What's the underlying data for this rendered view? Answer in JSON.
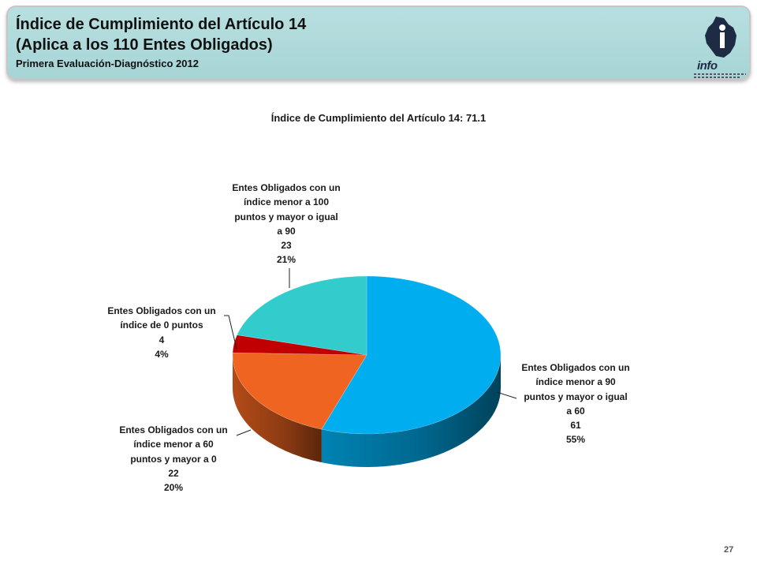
{
  "header": {
    "title_line1": "Índice de Cumplimiento del Artículo 14",
    "title_line2": "(Aplica a los 110 Entes Obligados)",
    "subtitle": "Primera Evaluación-Diagnóstico 2012",
    "logo_text": "info",
    "logo_icon": "infodf-logo-icon"
  },
  "page_number": "27",
  "chart_data": {
    "type": "pie",
    "title": "Índice de Cumplimiento del Artículo 14: 71.1",
    "total": 110,
    "slices": [
      {
        "label_lines": [
          "Entes Obligados con un",
          "índice menor a 90",
          "puntos y mayor o igual",
          "a 60"
        ],
        "value": 61,
        "value_text": "61",
        "percent_text": "55%",
        "color": "#00aeef"
      },
      {
        "label_lines": [
          "Entes Obligados con un",
          "índice menor a 60",
          "puntos y mayor a 0"
        ],
        "value": 22,
        "value_text": "22",
        "percent_text": "20%",
        "color": "#ef6420"
      },
      {
        "label_lines": [
          "Entes Obligados con un",
          "índice de 0 puntos"
        ],
        "value": 4,
        "value_text": "4",
        "percent_text": "4%",
        "color": "#c00000"
      },
      {
        "label_lines": [
          "Entes Obligados con un",
          "índice  menor a 100",
          "puntos y mayor o igual",
          "a 90"
        ],
        "value": 23,
        "value_text": "23",
        "percent_text": "21%",
        "color": "#33cccc"
      }
    ]
  }
}
